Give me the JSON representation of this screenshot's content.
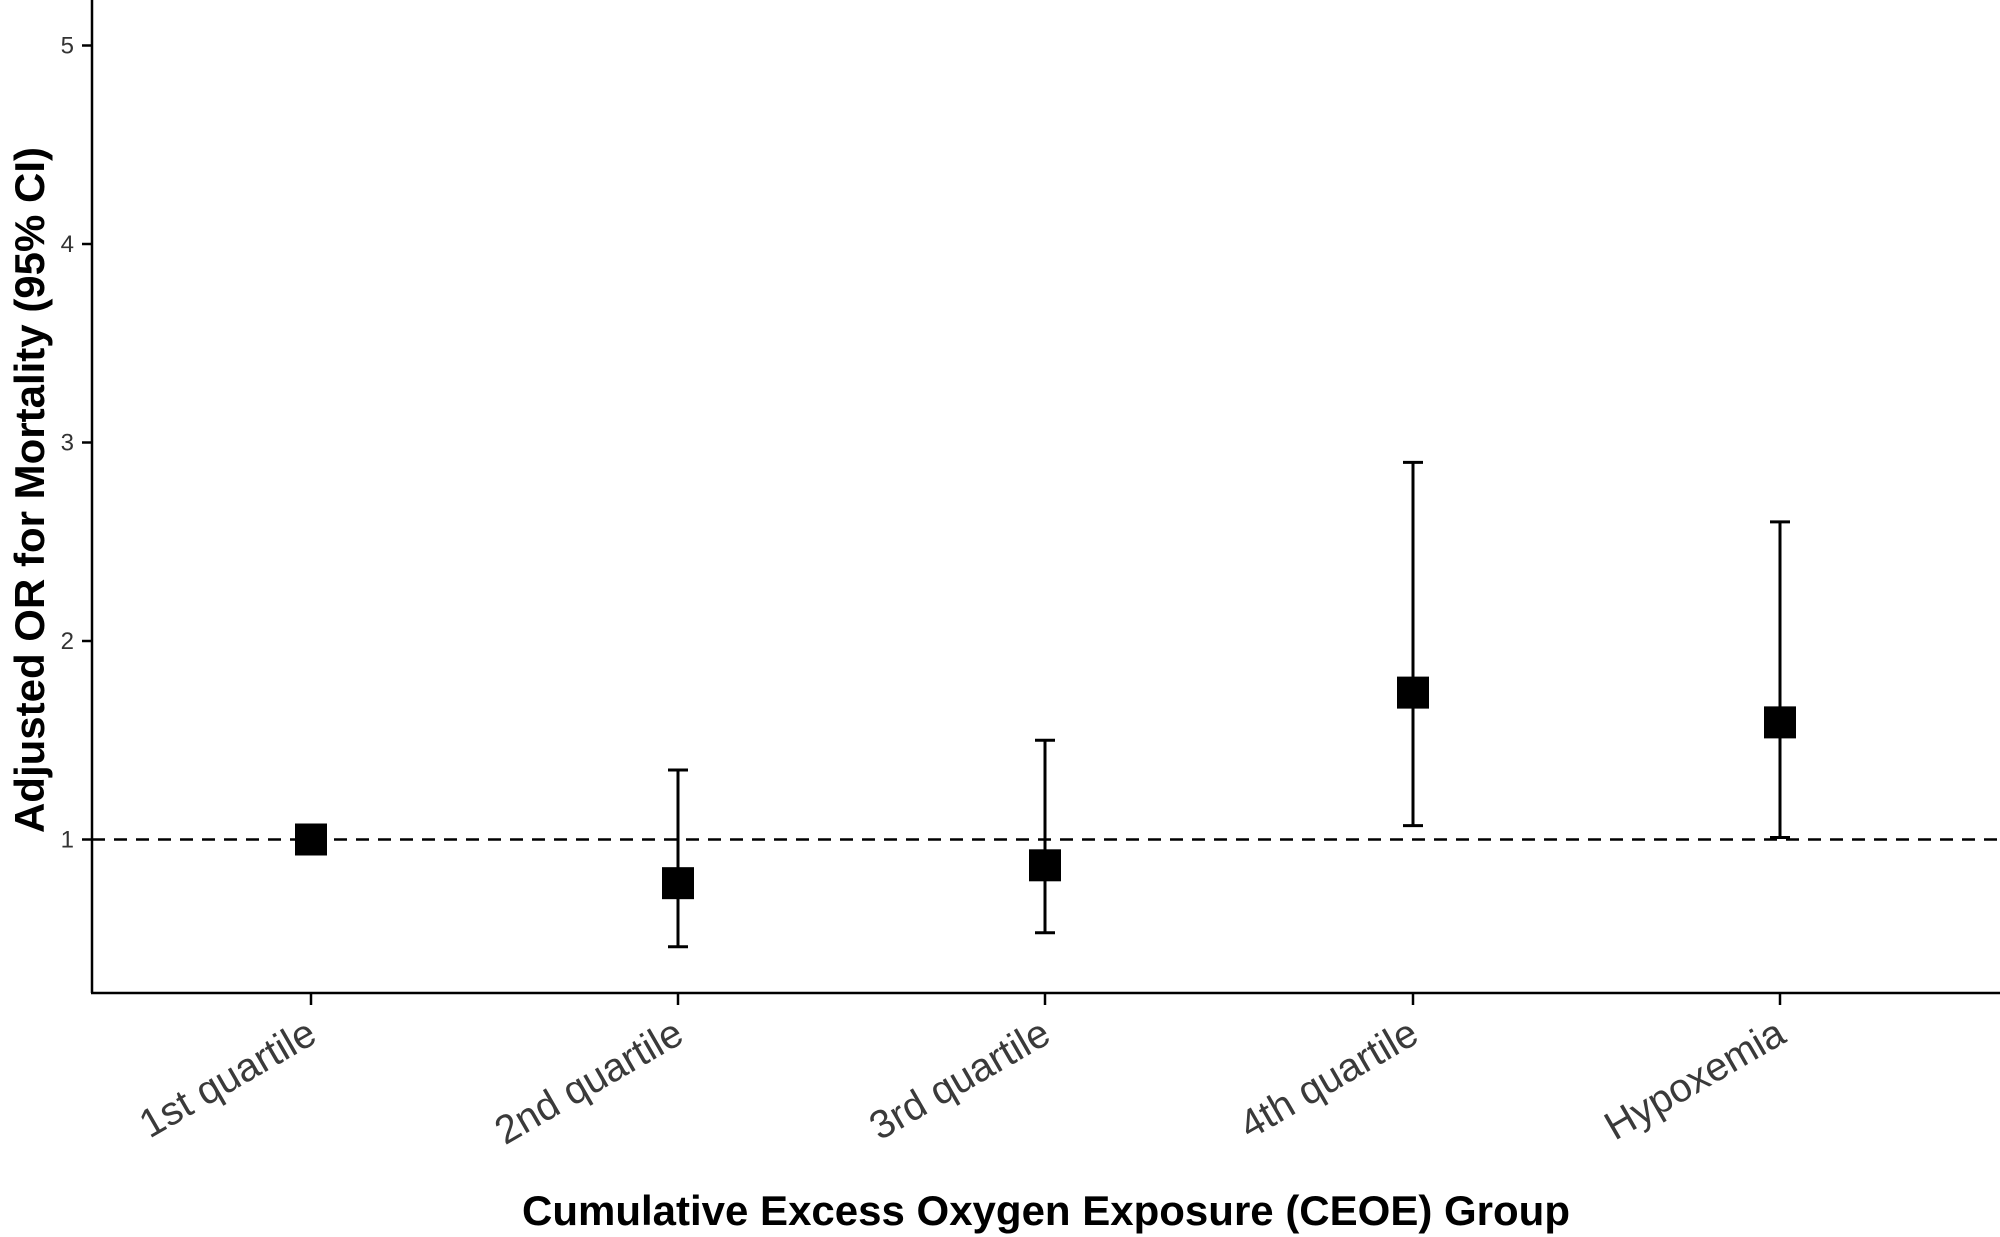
{
  "chart_data": {
    "type": "scatter",
    "subtype": "point-errorbar",
    "xlabel": "Cumulative Excess Oxygen Exposure (CEOE) Group",
    "ylabel": "Adjusted OR for Mortality (95% CI)",
    "categories": [
      "1st quartile",
      "2nd quartile",
      "3rd quartile",
      "4th quartile",
      "Hypoxemia"
    ],
    "values": [
      1.0,
      0.78,
      0.87,
      1.74,
      1.59
    ],
    "ci_lower": [
      null,
      0.46,
      0.53,
      1.07,
      1.01
    ],
    "ci_upper": [
      null,
      1.35,
      1.5,
      2.9,
      2.6
    ],
    "reference_line": 1,
    "yticks": [
      1,
      2,
      3,
      4,
      5
    ],
    "ylim": [
      0.24,
      5.23
    ],
    "grid": false,
    "marker": "square",
    "colors": {
      "marker": "#000000",
      "axis": "#000000"
    }
  }
}
